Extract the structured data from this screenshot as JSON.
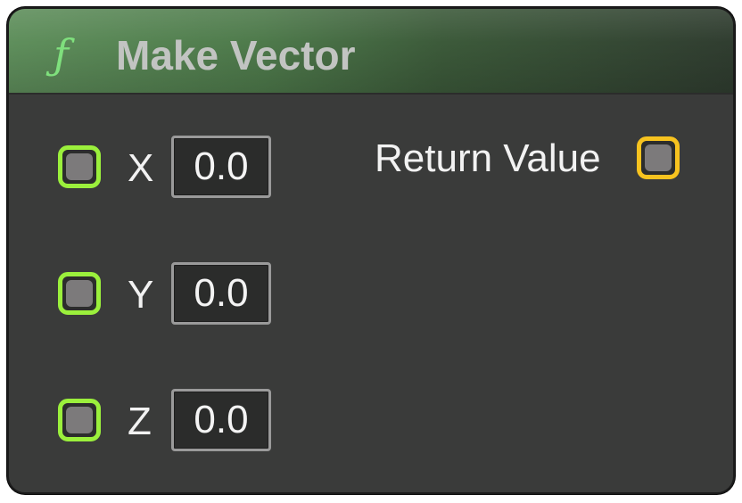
{
  "node": {
    "title": "Make Vector",
    "icon": "function-icon",
    "icon_glyph": "ƒ",
    "header_color": "#5f8f5c",
    "inputs": [
      {
        "name": "X",
        "value": "0.0",
        "pin_color": "#9bf03c"
      },
      {
        "name": "Y",
        "value": "0.0",
        "pin_color": "#9bf03c"
      },
      {
        "name": "Z",
        "value": "0.0",
        "pin_color": "#9bf03c"
      }
    ],
    "output": {
      "name": "Return Value",
      "pin_color": "#f7c31f"
    }
  }
}
